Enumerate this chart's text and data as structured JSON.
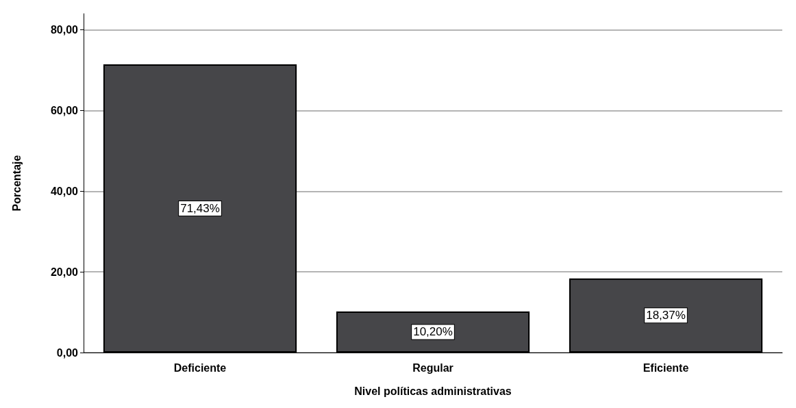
{
  "chart_data": {
    "type": "bar",
    "xlabel": "Nivel políticas administrativas",
    "ylabel": "Porcentaje",
    "categories": [
      "Deficiente",
      "Regular",
      "Eficiente"
    ],
    "values": [
      71.43,
      10.2,
      18.37
    ],
    "value_labels": [
      "71,43%",
      "10,20%",
      "18,37%"
    ],
    "color": "#464649",
    "ylim": [
      0,
      84
    ],
    "yticks": [
      {
        "value": 0,
        "label": "0,00"
      },
      {
        "value": 20,
        "label": "20,00"
      },
      {
        "value": 40,
        "label": "40,00"
      },
      {
        "value": 60,
        "label": "60,00"
      },
      {
        "value": 80,
        "label": "80,00"
      }
    ],
    "grid": "y"
  }
}
